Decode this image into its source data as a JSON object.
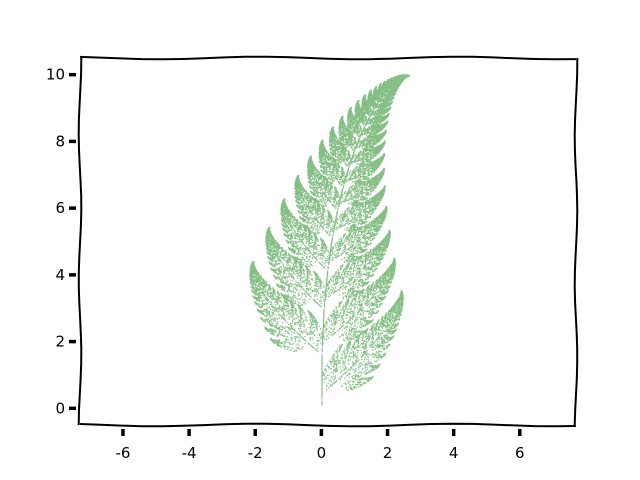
{
  "chart_data": {
    "type": "scatter",
    "title": "",
    "xlabel": "",
    "ylabel": "",
    "xlim": [
      -7.3,
      7.7
    ],
    "ylim": [
      -0.5,
      10.5
    ],
    "x_ticks": [
      -6,
      -4,
      -2,
      0,
      2,
      4,
      6
    ],
    "y_ticks": [
      0,
      2,
      4,
      6,
      8,
      10
    ],
    "x_tick_labels": [
      "-6",
      "-4",
      "-2",
      "0",
      "2",
      "4",
      "6"
    ],
    "y_tick_labels": [
      "0",
      "2",
      "4",
      "6",
      "8",
      "10"
    ],
    "grid": false,
    "legend": "none",
    "style": "xkcd",
    "series": [
      {
        "marker_color": "#228b22",
        "description_points": "Barnsley fern attractor (iterated function system)",
        "ifs": [
          {
            "a": 0.0,
            "b": 0.0,
            "c": 0.0,
            "d": 0.16,
            "e": 0.0,
            "f": 0.0,
            "p": 0.01
          },
          {
            "a": 0.85,
            "b": 0.04,
            "c": -0.04,
            "d": 0.85,
            "e": 0.0,
            "f": 1.6,
            "p": 0.85
          },
          {
            "a": 0.2,
            "b": -0.26,
            "c": 0.23,
            "d": 0.22,
            "e": 0.0,
            "f": 1.6,
            "p": 0.07
          },
          {
            "a": -0.15,
            "b": 0.28,
            "c": 0.26,
            "d": 0.24,
            "e": 0.0,
            "f": 0.44,
            "p": 0.07
          }
        ],
        "n_points": 30000,
        "x_range": [
          -2.2,
          2.7
        ],
        "y_range": [
          0.0,
          10.0
        ]
      }
    ]
  }
}
